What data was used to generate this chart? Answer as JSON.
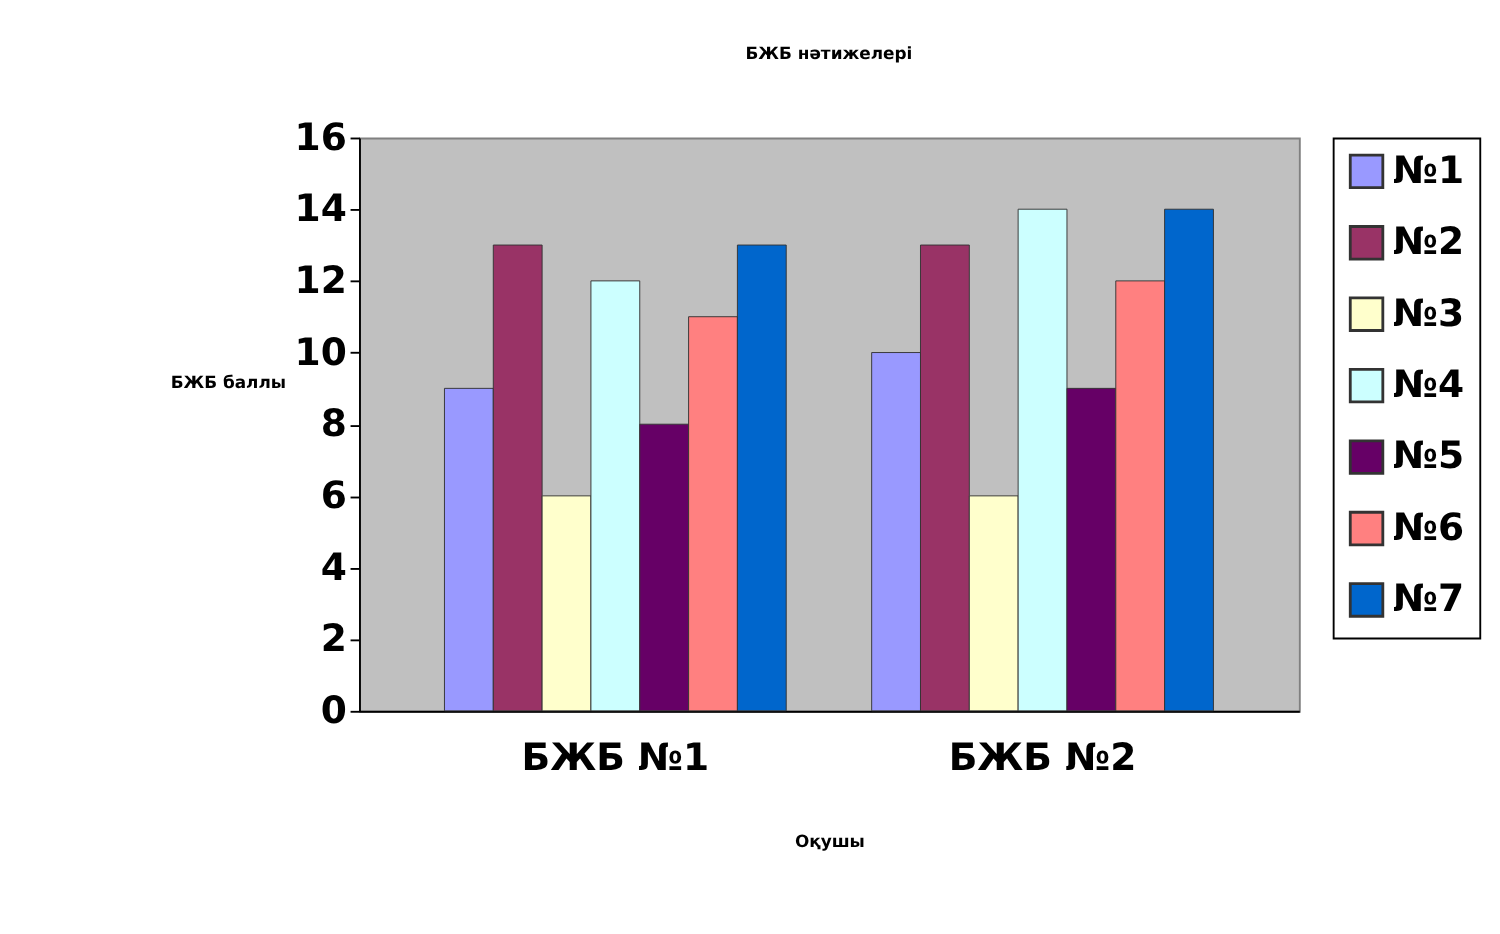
{
  "chart_data": {
    "type": "bar",
    "title": "БЖБ нәтижелері",
    "xlabel": "Оқушы",
    "ylabel": "БЖБ баллы",
    "categories": [
      "БЖБ №1",
      "БЖБ №2"
    ],
    "series": [
      {
        "name": "№1",
        "color": "#9999ff",
        "values": [
          9,
          10
        ]
      },
      {
        "name": "№2",
        "color": "#993366",
        "values": [
          13,
          13
        ]
      },
      {
        "name": "№3",
        "color": "#ffffcc",
        "values": [
          6,
          6
        ]
      },
      {
        "name": "№4",
        "color": "#ccffff",
        "values": [
          12,
          14
        ]
      },
      {
        "name": "№5",
        "color": "#660066",
        "values": [
          8,
          9
        ]
      },
      {
        "name": "№6",
        "color": "#ff8080",
        "values": [
          11,
          12
        ]
      },
      {
        "name": "№7",
        "color": "#0066cc",
        "values": [
          13,
          14
        ]
      }
    ],
    "ylim": [
      0,
      16
    ],
    "yticks": [
      0,
      2,
      4,
      6,
      8,
      10,
      12,
      14,
      16
    ],
    "grid": false,
    "legend": "right"
  }
}
